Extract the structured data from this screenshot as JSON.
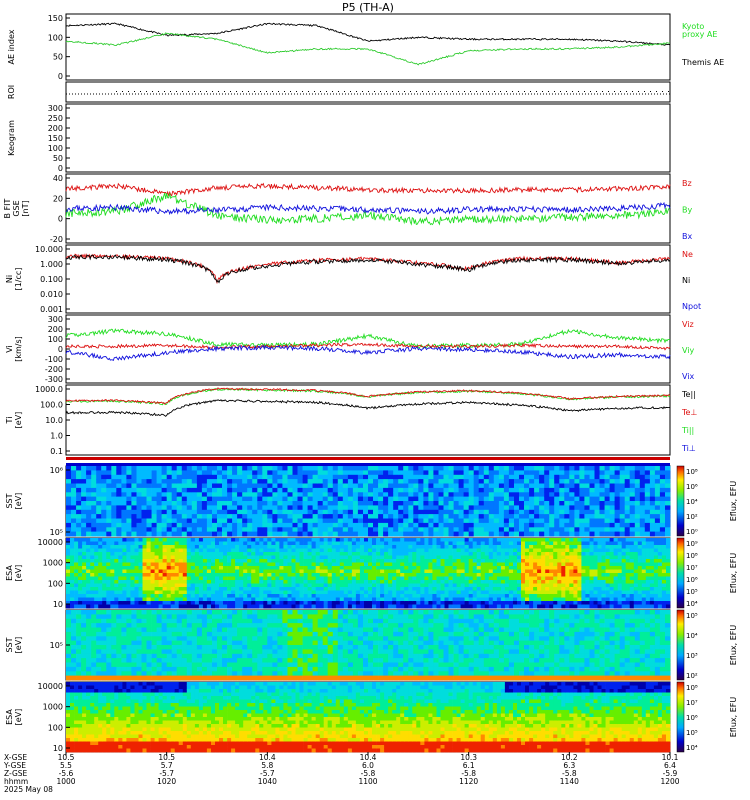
{
  "title": "P5 (TH-A)",
  "colors": {
    "black": "#000000",
    "green": "#22dd22",
    "red": "#dd1111",
    "blue": "#1111dd",
    "kyoto": "#33cc33"
  },
  "panels": [
    {
      "id": "ae",
      "ylabel": [
        "AE index"
      ],
      "ticks": [
        "150",
        "100",
        "50",
        "0"
      ],
      "ylim": [
        -20,
        150
      ],
      "legend": [
        {
          "text": "Kyoto",
          "color": "green"
        },
        {
          "text": "proxy AE",
          "color": "green"
        },
        {
          "text": "Themis AE",
          "color": "black"
        }
      ]
    },
    {
      "id": "roi",
      "ylabel": [
        "ROI"
      ],
      "ticks": []
    },
    {
      "id": "keogram",
      "ylabel": [
        "Keogram"
      ],
      "ticks": [
        "300",
        "250",
        "200",
        "150",
        "100",
        "50",
        "0"
      ],
      "ylim": [
        0,
        300
      ]
    },
    {
      "id": "bfield",
      "ylabel": [
        "B FIT",
        "GSE",
        "[nT]"
      ],
      "ticks": [
        "40",
        "20",
        "0",
        "-20"
      ],
      "ylim": [
        -20,
        50
      ],
      "legend": [
        {
          "text": "Bz",
          "color": "red"
        },
        {
          "text": "By",
          "color": "green"
        },
        {
          "text": "Bx",
          "color": "blue"
        }
      ]
    },
    {
      "id": "density",
      "ylabel": [
        "Ni",
        "[1/cc]"
      ],
      "ticks": [
        "10.000",
        "1.000",
        "0.100",
        "0.010",
        "0.001"
      ],
      "log": true,
      "legend": [
        {
          "text": "Ne",
          "color": "red"
        },
        {
          "text": "Ni",
          "color": "black"
        },
        {
          "text": "Npot",
          "color": "blue"
        }
      ]
    },
    {
      "id": "velocity",
      "ylabel": [
        "Vi",
        "[km/s]"
      ],
      "ticks": [
        "300",
        "200",
        "100",
        "0",
        "-100",
        "-200",
        "-300"
      ],
      "ylim": [
        -350,
        300
      ],
      "legend": [
        {
          "text": "Viz",
          "color": "red"
        },
        {
          "text": "Viy",
          "color": "green"
        },
        {
          "text": "Vix",
          "color": "blue"
        }
      ]
    },
    {
      "id": "temperature",
      "ylabel": [
        "Ti",
        "[eV]"
      ],
      "ticks": [
        "1000.0",
        "100.0",
        "10.0",
        "1.0",
        "0.1"
      ],
      "log": true,
      "legend": [
        {
          "text": "Te||",
          "color": "black"
        },
        {
          "text": "Te⊥",
          "color": "red"
        },
        {
          "text": "Ti||",
          "color": "green"
        },
        {
          "text": "Ti⊥",
          "color": "blue"
        }
      ]
    },
    {
      "id": "sst_e",
      "ylabel": [
        "SST",
        "[eV]"
      ],
      "ticks": [
        "10⁶",
        "10⁵"
      ],
      "colorbar": [
        "10⁸",
        "10⁶",
        "10⁴",
        "10²",
        "10⁰"
      ],
      "cbar_label": "Eflux, EFU"
    },
    {
      "id": "esa_e",
      "ylabel": [
        "ESA",
        "[eV]"
      ],
      "ticks": [
        "10000",
        "1000",
        "100",
        "10"
      ],
      "colorbar": [
        "10⁹",
        "10⁸",
        "10⁷",
        "10⁶",
        "10⁵",
        "10⁴"
      ],
      "cbar_label": "Eflux, EFU"
    },
    {
      "id": "sst_i",
      "ylabel": [
        "SST",
        "[eV]"
      ],
      "ticks": [
        "10⁵"
      ],
      "colorbar": [
        "10⁵",
        "10⁴",
        "10³",
        "10²"
      ],
      "cbar_label": "Eflux, EFU"
    },
    {
      "id": "esa_i",
      "ylabel": [
        "ESA",
        "[eV]"
      ],
      "ticks": [
        "10000",
        "1000",
        "100",
        "10"
      ],
      "colorbar": [
        "10⁸",
        "10⁷",
        "10⁶",
        "10⁵",
        "10⁴"
      ],
      "cbar_label": "Eflux, EFU"
    }
  ],
  "xaxis": {
    "row_labels": [
      "X-GSE",
      "Y-GSE",
      "Z-GSE",
      "hhmm",
      "2025 May 08"
    ],
    "ticks": [
      {
        "x": "10.5",
        "y": "5.5",
        "z": "-5.6",
        "t": "1000"
      },
      {
        "x": "10.5",
        "y": "5.7",
        "z": "-5.7",
        "t": "1020"
      },
      {
        "x": "10.4",
        "y": "5.8",
        "z": "-5.7",
        "t": "1040"
      },
      {
        "x": "10.4",
        "y": "6.0",
        "z": "-5.8",
        "t": "1100"
      },
      {
        "x": "10.3",
        "y": "6.1",
        "z": "-5.8",
        "t": "1120"
      },
      {
        "x": "10.2",
        "y": "6.3",
        "z": "-5.8",
        "t": "1140"
      },
      {
        "x": "10.1",
        "y": "6.4",
        "z": "-5.9",
        "t": "1200"
      }
    ]
  },
  "chart_data": {
    "type": "line",
    "title": "P5 (TH-A)",
    "x": [
      "1000",
      "1010",
      "1020",
      "1030",
      "1040",
      "1050",
      "1100",
      "1110",
      "1120",
      "1130",
      "1140",
      "1150",
      "1200"
    ],
    "series": [
      {
        "name": "Themis AE",
        "values": [
          120,
          125,
          95,
          100,
          125,
          120,
          80,
          90,
          85,
          85,
          85,
          80,
          70
        ]
      },
      {
        "name": "Kyoto proxy AE",
        "values": [
          80,
          70,
          100,
          85,
          50,
          60,
          60,
          20,
          55,
          60,
          60,
          65,
          75
        ]
      },
      {
        "name": "Bz",
        "values": [
          35,
          38,
          30,
          36,
          38,
          36,
          34,
          33,
          33,
          34,
          34,
          35,
          37
        ]
      },
      {
        "name": "By",
        "values": [
          10,
          12,
          28,
          8,
          3,
          5,
          8,
          2,
          4,
          4,
          6,
          8,
          12
        ]
      },
      {
        "name": "Bx",
        "values": [
          15,
          16,
          12,
          13,
          16,
          15,
          14,
          12,
          14,
          14,
          14,
          15,
          18
        ]
      },
      {
        "name": "Ni",
        "values": [
          3,
          3,
          2,
          0.05,
          0.8,
          1.5,
          2,
          1,
          0.4,
          2,
          2,
          1,
          2
        ]
      },
      {
        "name": "Viy",
        "values": [
          100,
          150,
          120,
          20,
          10,
          20,
          100,
          0,
          10,
          20,
          150,
          80,
          50
        ]
      },
      {
        "name": "Viz",
        "values": [
          0,
          0,
          10,
          -10,
          0,
          10,
          20,
          0,
          0,
          10,
          0,
          0,
          -20
        ]
      },
      {
        "name": "Vix",
        "values": [
          -50,
          -120,
          -60,
          -20,
          -10,
          -20,
          -60,
          -20,
          -30,
          -50,
          -100,
          -80,
          -100
        ]
      }
    ],
    "xlabel": "hhmm",
    "ylabel": ""
  }
}
